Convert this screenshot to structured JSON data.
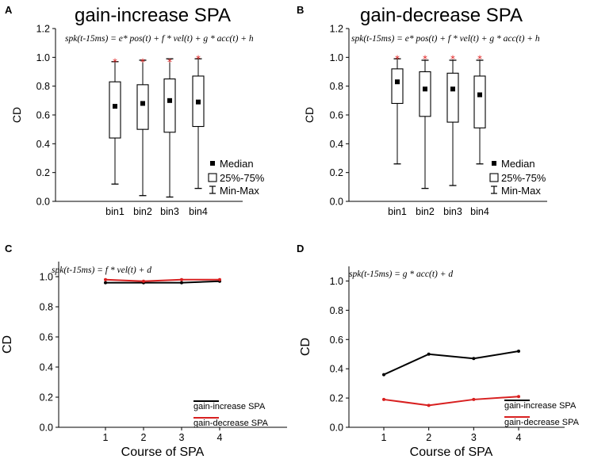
{
  "chart_data": [
    {
      "panel": "A",
      "type": "box",
      "title": "gain-increase SPA",
      "equation": "spk(t-15ms) = e* pos(t) + f * vel(t) + g * acc(t) + h",
      "xlabel": "",
      "ylabel": "CD",
      "ylim": [
        0,
        1.2
      ],
      "yticks": [
        "0.0",
        "0.2",
        "0.4",
        "0.6",
        "0.8",
        "1.0",
        "1.2"
      ],
      "categories": [
        "bin1",
        "bin2",
        "bin3",
        "bin4"
      ],
      "median": [
        0.66,
        0.68,
        0.7,
        0.69
      ],
      "q1": [
        0.44,
        0.5,
        0.48,
        0.52
      ],
      "q3": [
        0.83,
        0.81,
        0.85,
        0.87
      ],
      "min": [
        0.12,
        0.04,
        0.03,
        0.09
      ],
      "max": [
        0.97,
        0.98,
        0.99,
        0.99
      ],
      "outlier_markers": [
        0.97,
        0.97,
        0.97,
        0.99
      ],
      "legend": [
        "Median",
        "25%-75%",
        "Min-Max"
      ]
    },
    {
      "panel": "B",
      "type": "box",
      "title": "gain-decrease SPA",
      "equation": "spk(t-15ms) = e* pos(t) + f * vel(t) + g * acc(t) + h",
      "xlabel": "",
      "ylabel": "CD",
      "ylim": [
        0,
        1.2
      ],
      "yticks": [
        "0.0",
        "0.2",
        "0.4",
        "0.6",
        "0.8",
        "1.0",
        "1.2"
      ],
      "categories": [
        "bin1",
        "bin2",
        "bin3",
        "bin4"
      ],
      "median": [
        0.83,
        0.78,
        0.78,
        0.74
      ],
      "q1": [
        0.68,
        0.59,
        0.55,
        0.51
      ],
      "q3": [
        0.92,
        0.9,
        0.89,
        0.87
      ],
      "min": [
        0.26,
        0.09,
        0.11,
        0.26
      ],
      "max": [
        0.99,
        0.98,
        0.98,
        0.98
      ],
      "outlier_markers": [
        0.99,
        0.99,
        0.99,
        0.99
      ],
      "legend": [
        "Median",
        "25%-75%",
        "Min-Max"
      ]
    },
    {
      "panel": "C",
      "type": "line",
      "equation": "spk(t-15ms) = f * vel(t) + d",
      "xlabel": "Course of SPA",
      "ylabel": "CD",
      "ylim": [
        0,
        1.1
      ],
      "yticks": [
        "0.0",
        "0.2",
        "0.4",
        "0.6",
        "0.8",
        "1.0"
      ],
      "x": [
        1,
        2,
        3,
        4
      ],
      "xticks": [
        "1",
        "2",
        "3",
        "4"
      ],
      "series": [
        {
          "name": "gain-increase SPA",
          "color": "#000000",
          "values": [
            0.96,
            0.96,
            0.96,
            0.97
          ]
        },
        {
          "name": "gain-decrease SPA",
          "color": "#d82020",
          "values": [
            0.98,
            0.97,
            0.98,
            0.98
          ]
        }
      ]
    },
    {
      "panel": "D",
      "type": "line",
      "equation": "spk(t-15ms) = g * acc(t) + d",
      "xlabel": "Course of SPA",
      "ylabel": "CD",
      "ylim": [
        0,
        1.1
      ],
      "yticks": [
        "0.0",
        "0.2",
        "0.4",
        "0.6",
        "0.8",
        "1.0"
      ],
      "x": [
        1,
        2,
        3,
        4
      ],
      "xticks": [
        "1",
        "2",
        "3",
        "4"
      ],
      "series": [
        {
          "name": "gain-increase SPA",
          "color": "#000000",
          "values": [
            0.36,
            0.5,
            0.47,
            0.52
          ]
        },
        {
          "name": "gain-decrease SPA",
          "color": "#d82020",
          "values": [
            0.19,
            0.15,
            0.19,
            0.21
          ]
        }
      ]
    }
  ]
}
